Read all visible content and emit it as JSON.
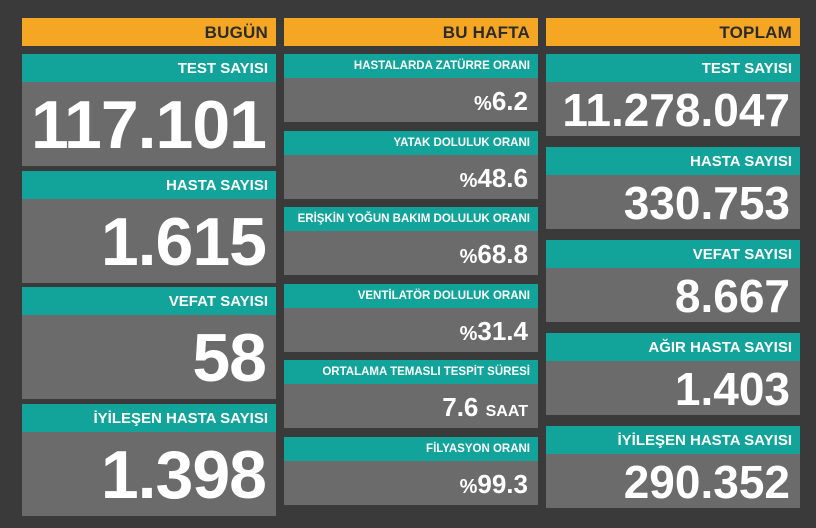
{
  "colors": {
    "background": "#3a3a3a",
    "header": "#f5a623",
    "label": "#12a39b",
    "value_box": "#6b6b6b"
  },
  "today": {
    "header": "BUGÜN",
    "cards": [
      {
        "label": "TEST SAYISI",
        "value": "117.101"
      },
      {
        "label": "HASTA SAYISI",
        "value": "1.615"
      },
      {
        "label": "VEFAT SAYISI",
        "value": "58"
      },
      {
        "label": "İYİLEŞEN HASTA SAYISI",
        "value": "1.398"
      }
    ]
  },
  "this_week": {
    "header": "BU HAFTA",
    "cards": [
      {
        "label": "HASTALARDA ZATÜRRE ORANI",
        "prefix": "%",
        "value": "6.2"
      },
      {
        "label": "YATAK DOLULUK ORANI",
        "prefix": "%",
        "value": "48.6"
      },
      {
        "label": "ERİŞKİN YOĞUN BAKIM DOLULUK ORANI",
        "prefix": "%",
        "value": "68.8"
      },
      {
        "label": "VENTİLATÖR DOLULUK ORANI",
        "prefix": "%",
        "value": "31.4"
      },
      {
        "label": "ORTALAMA TEMASLI TESPİT SÜRESİ",
        "value": "7.6",
        "unit": "SAAT"
      },
      {
        "label": "FİLYASYON ORANI",
        "prefix": "%",
        "value": "99.3"
      }
    ]
  },
  "total": {
    "header": "TOPLAM",
    "cards": [
      {
        "label": "TEST SAYISI",
        "value": "11.278.047"
      },
      {
        "label": "HASTA SAYISI",
        "value": "330.753"
      },
      {
        "label": "VEFAT SAYISI",
        "value": "8.667"
      },
      {
        "label": "AĞIR HASTA SAYISI",
        "value": "1.403"
      },
      {
        "label": "İYİLEŞEN HASTA SAYISI",
        "value": "290.352"
      }
    ]
  }
}
